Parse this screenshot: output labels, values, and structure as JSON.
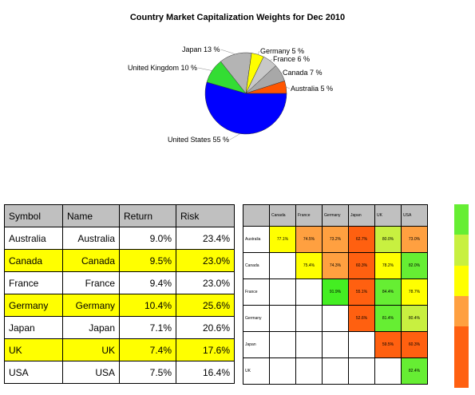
{
  "title": "Country Market Capitalization Weights for Dec 2010",
  "chart_data": {
    "type": "pie",
    "title": "Country Market Capitalization Weights for Dec 2010",
    "slices": [
      {
        "label": "United States 55 %",
        "value": 55,
        "color": "#0000ff"
      },
      {
        "label": "United Kingdom 10 %",
        "value": 10,
        "color": "#33dd33"
      },
      {
        "label": "Japan 13 %",
        "value": 13,
        "color": "#b4b4b4"
      },
      {
        "label": "Germany 5 %",
        "value": 5,
        "color": "#ffff00"
      },
      {
        "label": "France 6 %",
        "value": 6,
        "color": "#c8c8c8"
      },
      {
        "label": "Canada 7 %",
        "value": 7,
        "color": "#a8a8a8"
      },
      {
        "label": "Australia 5 %",
        "value": 5,
        "color": "#ff5500"
      }
    ]
  },
  "risk_table": {
    "headers": [
      "Symbol",
      "Name",
      "Return",
      "Risk"
    ],
    "rows": [
      {
        "symbol": "Australia",
        "name": "Australia",
        "return": "9.0%",
        "risk": "23.4%",
        "highlight": false
      },
      {
        "symbol": "Canada",
        "name": "Canada",
        "return": "9.5%",
        "risk": "23.0%",
        "highlight": true
      },
      {
        "symbol": "France",
        "name": "France",
        "return": "9.4%",
        "risk": "23.0%",
        "highlight": false
      },
      {
        "symbol": "Germany",
        "name": "Germany",
        "return": "10.4%",
        "risk": "25.6%",
        "highlight": true
      },
      {
        "symbol": "Japan",
        "name": "Japan",
        "return": "7.1%",
        "risk": "20.6%",
        "highlight": false
      },
      {
        "symbol": "UK",
        "name": "UK",
        "return": "7.4%",
        "risk": "17.6%",
        "highlight": true
      },
      {
        "symbol": "USA",
        "name": "USA",
        "return": "7.5%",
        "risk": "16.4%",
        "highlight": false
      }
    ]
  },
  "correlation": {
    "columns": [
      "Canada",
      "France",
      "Germany",
      "Japan",
      "UK",
      "USA"
    ],
    "rows": [
      {
        "label": "Australia",
        "cells": [
          {
            "v": "77.1%",
            "c": "#ffff00"
          },
          {
            "v": "74.5%",
            "c": "#ffa040"
          },
          {
            "v": "73.2%",
            "c": "#ffa040"
          },
          {
            "v": "62.7%",
            "c": "#ff6010"
          },
          {
            "v": "80.0%",
            "c": "#c8f040"
          },
          {
            "v": "73.0%",
            "c": "#ffa040"
          }
        ]
      },
      {
        "label": "Canada",
        "cells": [
          {
            "v": "",
            "c": "#ffffff"
          },
          {
            "v": "75.4%",
            "c": "#ffff00"
          },
          {
            "v": "74.3%",
            "c": "#ffa040"
          },
          {
            "v": "60.3%",
            "c": "#ff6010"
          },
          {
            "v": "78.2%",
            "c": "#ffff00"
          },
          {
            "v": "82.0%",
            "c": "#66ee33"
          }
        ]
      },
      {
        "label": "France",
        "cells": [
          {
            "v": "",
            "c": "#ffffff"
          },
          {
            "v": "",
            "c": "#ffffff"
          },
          {
            "v": "91.9%",
            "c": "#44ee22"
          },
          {
            "v": "55.1%",
            "c": "#ff6010"
          },
          {
            "v": "84.4%",
            "c": "#66ee33"
          },
          {
            "v": "78.7%",
            "c": "#ffff00"
          }
        ]
      },
      {
        "label": "Germany",
        "cells": [
          {
            "v": "",
            "c": "#ffffff"
          },
          {
            "v": "",
            "c": "#ffffff"
          },
          {
            "v": "",
            "c": "#ffffff"
          },
          {
            "v": "52.6%",
            "c": "#ff6010"
          },
          {
            "v": "81.4%",
            "c": "#66ee33"
          },
          {
            "v": "80.4%",
            "c": "#c8f040"
          }
        ]
      },
      {
        "label": "Japan",
        "cells": [
          {
            "v": "",
            "c": "#ffffff"
          },
          {
            "v": "",
            "c": "#ffffff"
          },
          {
            "v": "",
            "c": "#ffffff"
          },
          {
            "v": "",
            "c": "#ffffff"
          },
          {
            "v": "59.5%",
            "c": "#ff6010"
          },
          {
            "v": "60.3%",
            "c": "#ff6010"
          }
        ]
      },
      {
        "label": "UK",
        "cells": [
          {
            "v": "",
            "c": "#ffffff"
          },
          {
            "v": "",
            "c": "#ffffff"
          },
          {
            "v": "",
            "c": "#ffffff"
          },
          {
            "v": "",
            "c": "#ffffff"
          },
          {
            "v": "",
            "c": "#ffffff"
          },
          {
            "v": "82.4%",
            "c": "#66ee33"
          }
        ]
      }
    ]
  },
  "scale_colors": [
    "#66ee33",
    "#c8f040",
    "#ffff00",
    "#ffa040",
    "#ff6010",
    "#ff6010"
  ]
}
